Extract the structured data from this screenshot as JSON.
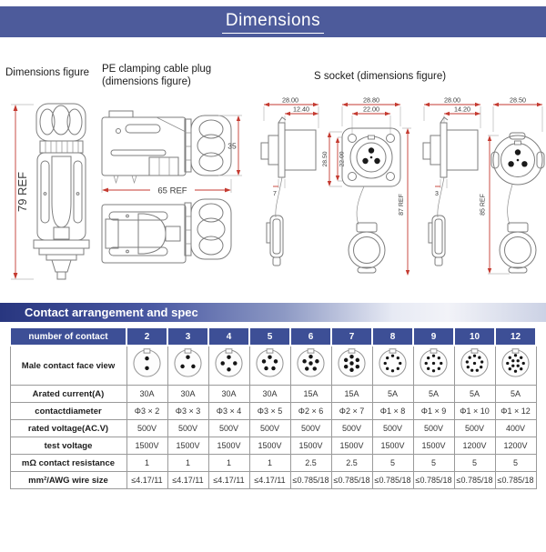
{
  "page": {
    "title": "Dimensions"
  },
  "colors": {
    "title_bar": "#4d5b9b",
    "table_header": "#3d4f96",
    "banner_gradient_start": "#28367f",
    "dimension_red": "#c43a30",
    "drawing_line": "#7e7e7e"
  },
  "figures": {
    "left": {
      "title": "Dimensions figure",
      "height_dim": "79 REF"
    },
    "middle": {
      "title": "PE clamping cable plug (dimensions figure)",
      "height_dim": "35",
      "length_dim": "65 REF"
    },
    "right": {
      "title": "S socket (dimensions figure)",
      "s1": {
        "w": "28.00",
        "w2": "12.40",
        "d": "7"
      },
      "s2": {
        "w": "28.80",
        "w2": "22.00",
        "h": "28.50",
        "h2": "22.00",
        "total": "87 REF"
      },
      "s3": {
        "w": "28.00",
        "w2": "14.20",
        "d": "3"
      },
      "s4": {
        "w": "28.50",
        "total": "85 REF"
      }
    }
  },
  "spec": {
    "banner": "Contact arrangement and spec",
    "table": {
      "header_label": "number of contact",
      "contacts": [
        "2",
        "3",
        "4",
        "5",
        "6",
        "7",
        "8",
        "9",
        "10",
        "12"
      ],
      "face_row_label": "Male contact face view",
      "rows": [
        {
          "label": "Arated current(A)",
          "values": [
            "30A",
            "30A",
            "30A",
            "30A",
            "15A",
            "15A",
            "5A",
            "5A",
            "5A",
            "5A"
          ]
        },
        {
          "label": "contactdiameter",
          "values": [
            "Φ3 × 2",
            "Φ3 × 3",
            "Φ3 × 4",
            "Φ3 × 5",
            "Φ2 × 6",
            "Φ2 × 7",
            "Φ1 × 8",
            "Φ1 × 9",
            "Φ1 × 10",
            "Φ1 × 12"
          ]
        },
        {
          "label": "rated voltage(AC.V)",
          "values": [
            "500V",
            "500V",
            "500V",
            "500V",
            "500V",
            "500V",
            "500V",
            "500V",
            "500V",
            "400V"
          ]
        },
        {
          "label": "test voltage",
          "values": [
            "1500V",
            "1500V",
            "1500V",
            "1500V",
            "1500V",
            "1500V",
            "1500V",
            "1500V",
            "1200V",
            "1200V"
          ]
        },
        {
          "label": "mΩ contact resistance",
          "values": [
            "1",
            "1",
            "1",
            "1",
            "2.5",
            "2.5",
            "5",
            "5",
            "5",
            "5"
          ]
        },
        {
          "label": "mm²/AWG wire size",
          "values": [
            "≤4.17/11",
            "≤4.17/11",
            "≤4.17/11",
            "≤4.17/11",
            "≤0.785/18",
            "≤0.785/18",
            "≤0.785/18",
            "≤0.785/18",
            "≤0.785/18",
            "≤0.785/18"
          ]
        }
      ]
    }
  }
}
